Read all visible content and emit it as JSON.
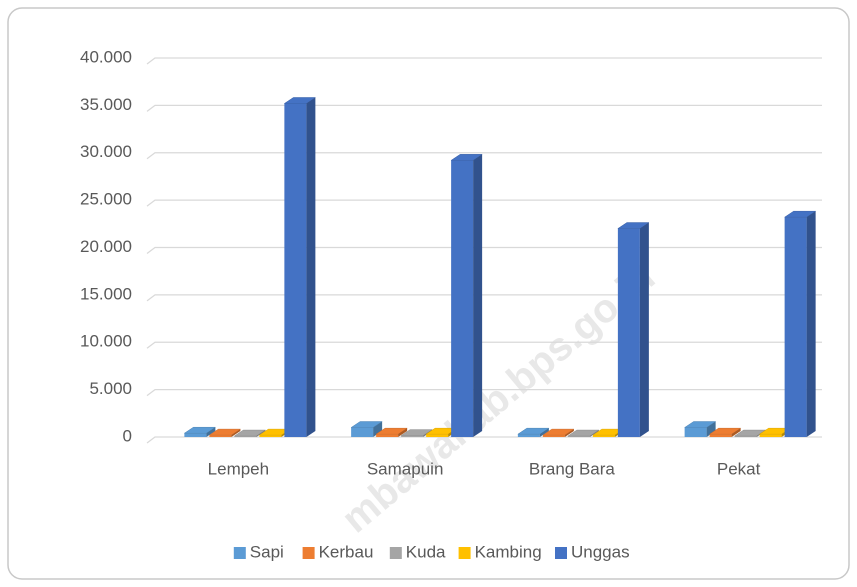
{
  "chart_data": {
    "type": "bar3d",
    "categories": [
      "Lempeh",
      "Samapuin",
      "Brang Bara",
      "Pekat"
    ],
    "series": [
      {
        "name": "Sapi",
        "color": "#5b9bd5",
        "values": [
          400,
          1000,
          300,
          1000
        ]
      },
      {
        "name": "Kerbau",
        "color": "#ed7d31",
        "values": [
          200,
          300,
          200,
          300
        ]
      },
      {
        "name": "Kuda",
        "color": "#a5a5a5",
        "values": [
          100,
          150,
          100,
          100
        ]
      },
      {
        "name": "Kambing",
        "color": "#ffc000",
        "values": [
          200,
          300,
          200,
          300
        ]
      },
      {
        "name": "Unggas",
        "color": "#4472c4",
        "values": [
          35200,
          29200,
          22000,
          23200
        ]
      }
    ],
    "ylim": [
      0,
      40000
    ],
    "yticks": [
      0,
      {
        "value": 5000,
        "label": "5.000"
      },
      {
        "value": 10000,
        "label": "10.000"
      },
      {
        "value": 15000,
        "label": "15.000"
      },
      {
        "value": 20000,
        "label": "20.000"
      },
      {
        "value": 25000,
        "label": "25.000"
      },
      {
        "value": 30000,
        "label": "30.000"
      },
      {
        "value": 35000,
        "label": "35.000"
      },
      {
        "value": 40000,
        "label": "40.000"
      }
    ],
    "grid": true,
    "legend": "bottom",
    "watermark": "mbawakab.bps.go.id"
  }
}
